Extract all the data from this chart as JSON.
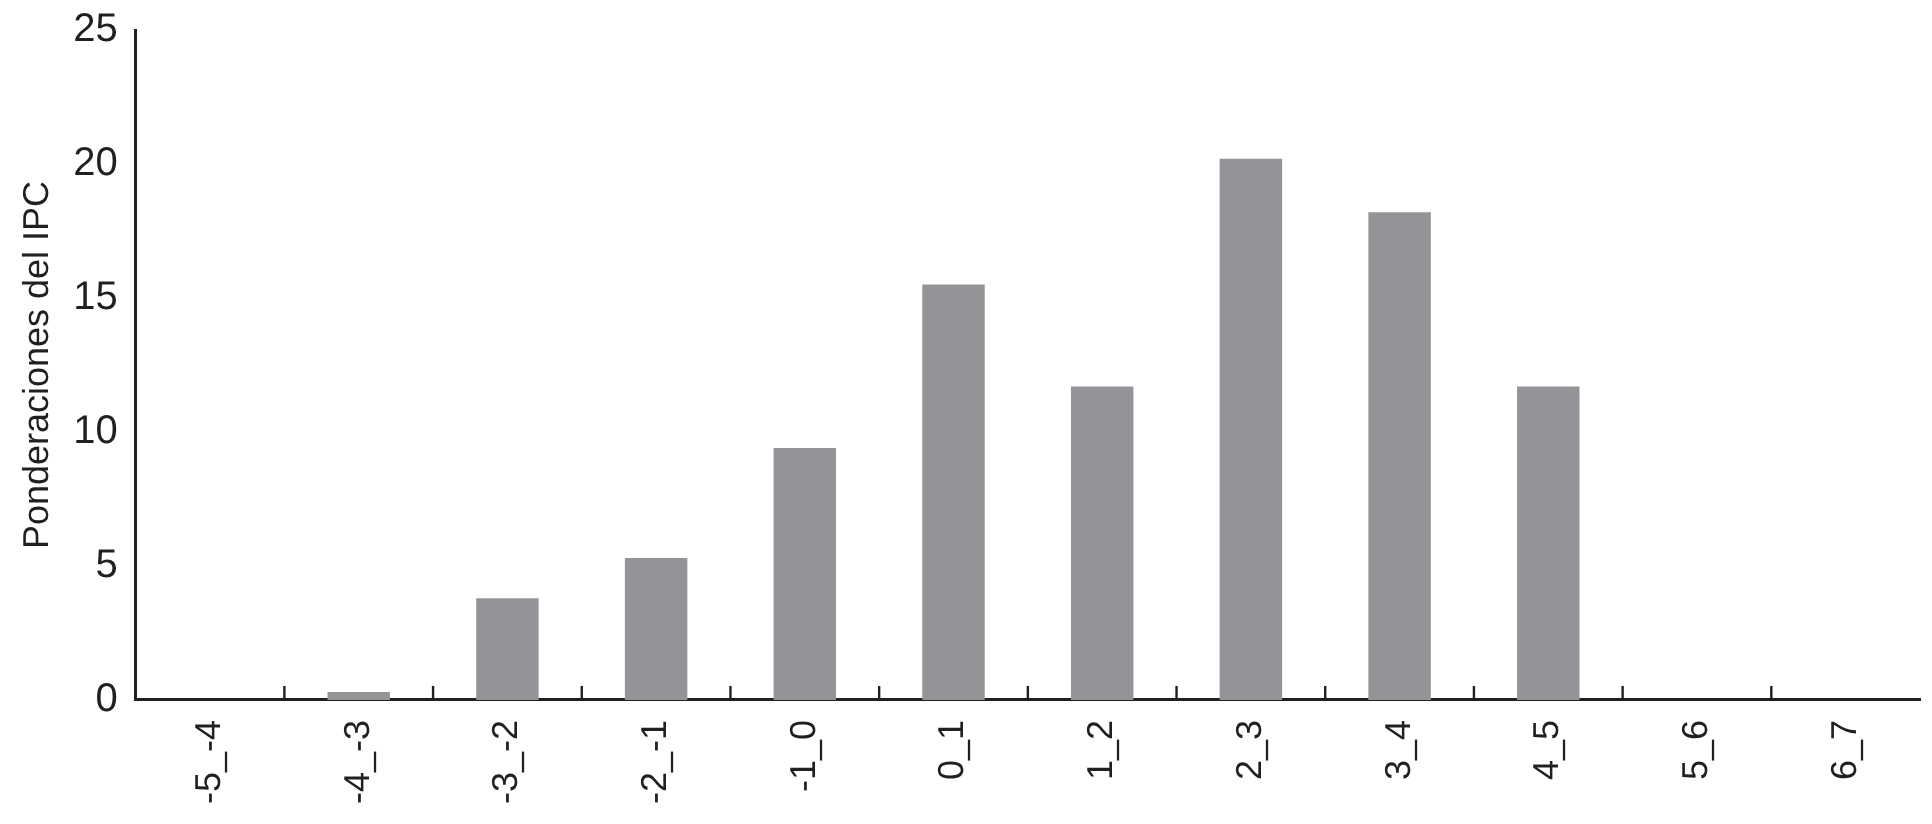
{
  "chart_data": {
    "type": "bar",
    "ylabel": "Ponderaciones del IPC",
    "categories": [
      "-5_-4",
      "-4_-3",
      "-3_-2",
      "-2_-1",
      "-1_0",
      "0_1",
      "1_2",
      "2_3",
      "3_4",
      "4_5",
      "5_6",
      "6_7"
    ],
    "values": [
      0,
      0.3,
      3.8,
      5.3,
      9.4,
      15.5,
      11.7,
      20.2,
      18.2,
      11.7,
      0,
      0
    ],
    "color": "#939498",
    "ylim": [
      0,
      25
    ],
    "yticks": [
      0,
      5,
      10,
      15,
      20,
      25
    ],
    "grid": false,
    "legend": false
  }
}
